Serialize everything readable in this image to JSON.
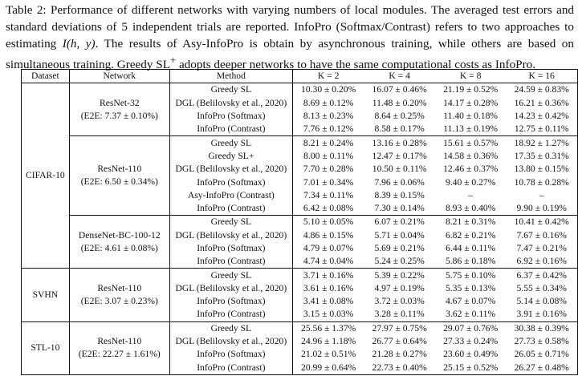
{
  "caption": {
    "label": "Table 2:",
    "text1": "Performance of different networks with varying numbers of local modules. The averaged test errors and standard deviations of 5 independent trials are reported. InfoPro (Softmax/Contrast) refers to two approaches to estimating",
    "math": "I(h, y)",
    "text2": ". The results of Asy-InfoPro is obtain by asynchronous training, while others are based on simultaneous training. Greedy SL",
    "sup": "+",
    "text3": "adopts deeper networks to have the same computational costs as InfoPro."
  },
  "headers": {
    "dataset": "Dataset",
    "network": "Network",
    "method": "Method",
    "k2": "K = 2",
    "k4": "K = 4",
    "k8": "K = 8",
    "k16": "K = 16"
  },
  "datasets": [
    "CIFAR-10",
    "SVHN",
    "STL-10"
  ],
  "groups": [
    {
      "net": "ResNet-32",
      "e2e": "(E2E: 7.37 ± 0.10%)",
      "rows": [
        {
          "m": "Greedy SL",
          "v": [
            "10.30 ± 0.20%",
            "16.07 ± 0.46%",
            "21.19 ± 0.52%",
            "24.59 ± 0.83%"
          ]
        },
        {
          "m": "DGL (Belilovsky et al., 2020)",
          "v": [
            "8.69 ± 0.12%",
            "11.48 ± 0.20%",
            "14.17 ± 0.28%",
            "16.21 ± 0.36%"
          ]
        },
        {
          "m": "InfoPro (Softmax)",
          "v": [
            "8.13 ± 0.23%",
            "8.64 ± 0.25%",
            "11.40 ± 0.18%",
            "14.23 ± 0.42%"
          ]
        },
        {
          "m": "InfoPro (Contrast)",
          "v": [
            "7.76 ± 0.12%",
            "8.58 ± 0.17%",
            "11.13 ± 0.19%",
            "12.75 ± 0.11%"
          ]
        }
      ]
    },
    {
      "net": "ResNet-110",
      "e2e": "(E2E: 6.50 ± 0.34%)",
      "rows": [
        {
          "m": "Greedy SL",
          "v": [
            "8.21 ± 0.24%",
            "13.16 ± 0.28%",
            "15.61 ± 0.57%",
            "18.92 ± 1.27%"
          ]
        },
        {
          "m": "Greedy SL+",
          "v": [
            "8.00 ± 0.11%",
            "12.47 ± 0.17%",
            "14.58 ± 0.36%",
            "17.35 ± 0.31%"
          ]
        },
        {
          "m": "DGL (Belilovsky et al., 2020)",
          "v": [
            "7.70 ± 0.28%",
            "10.50 ± 0.11%",
            "12.46 ± 0.37%",
            "13.80 ± 0.15%"
          ]
        },
        {
          "m": "InfoPro (Softmax)",
          "v": [
            "7.01 ± 0.34%",
            "7.96 ± 0.06%",
            "9.40 ± 0.27%",
            "10.78 ± 0.28%"
          ]
        },
        {
          "m": "Asy-InfoPro (Contrast)",
          "v": [
            "7.34 ± 0.11%",
            "8.39 ± 0.15%",
            "–",
            "–"
          ]
        },
        {
          "m": "InfoPro (Contrast)",
          "v": [
            "6.42 ± 0.08%",
            "7.30 ± 0.14%",
            "8.93 ± 0.40%",
            "9.90 ± 0.19%"
          ]
        }
      ]
    },
    {
      "net": "DenseNet-BC-100-12",
      "e2e": "(E2E: 4.61 ± 0.08%)",
      "rows": [
        {
          "m": "Greedy SL",
          "v": [
            "5.10 ± 0.05%",
            "6.07 ± 0.21%",
            "8.21 ± 0.31%",
            "10.41 ± 0.42%"
          ]
        },
        {
          "m": "DGL (Belilovsky et al., 2020)",
          "v": [
            "4.86 ± 0.15%",
            "5.71 ± 0.04%",
            "6.82 ± 0.21%",
            "7.67 ± 0.16%"
          ]
        },
        {
          "m": "InfoPro (Softmax)",
          "v": [
            "4.79 ± 0.07%",
            "5.69 ± 0.21%",
            "6.44 ± 0.11%",
            "7.47 ± 0.21%"
          ]
        },
        {
          "m": "InfoPro (Contrast)",
          "v": [
            "4.74 ± 0.04%",
            "5.24 ± 0.25%",
            "5.86 ± 0.18%",
            "6.92 ± 0.16%"
          ]
        }
      ]
    },
    {
      "net": "ResNet-110",
      "e2e": "(E2E: 3.07 ± 0.23%)",
      "rows": [
        {
          "m": "Greedy SL",
          "v": [
            "3.71 ± 0.16%",
            "5.39 ± 0.22%",
            "5.75 ± 0.10%",
            "6.37 ± 0.42%"
          ]
        },
        {
          "m": "DGL (Belilovsky et al., 2020)",
          "v": [
            "3.61 ± 0.16%",
            "4.97 ± 0.19%",
            "5.35 ± 0.13%",
            "5.55 ± 0.34%"
          ]
        },
        {
          "m": "InfoPro (Softmax)",
          "v": [
            "3.41 ± 0.08%",
            "3.72 ± 0.03%",
            "4.67 ± 0.07%",
            "5.14 ± 0.08%"
          ]
        },
        {
          "m": "InfoPro (Contrast)",
          "v": [
            "3.15 ± 0.03%",
            "3.28 ± 0.11%",
            "3.62 ± 0.11%",
            "3.91 ± 0.16%"
          ]
        }
      ]
    },
    {
      "net": "ResNet-110",
      "e2e": "(E2E: 22.27 ± 1.61%)",
      "rows": [
        {
          "m": "Greedy SL",
          "v": [
            "25.56 ± 1.37%",
            "27.97 ± 0.75%",
            "29.07 ± 0.76%",
            "30.38 ± 0.39%"
          ]
        },
        {
          "m": "DGL (Belilovsky et al., 2020)",
          "v": [
            "24.96 ± 1.18%",
            "26.77 ± 0.64%",
            "27.33 ± 0.24%",
            "27.73 ± 0.58%"
          ]
        },
        {
          "m": "InfoPro (Softmax)",
          "v": [
            "21.02 ± 0.51%",
            "21.28 ± 0.27%",
            "23.60 ± 0.49%",
            "26.05 ± 0.71%"
          ]
        },
        {
          "m": "InfoPro (Contrast)",
          "v": [
            "20.99 ± 0.64%",
            "22.73 ± 0.40%",
            "25.15 ± 0.52%",
            "26.27 ± 0.48%"
          ]
        }
      ]
    }
  ]
}
